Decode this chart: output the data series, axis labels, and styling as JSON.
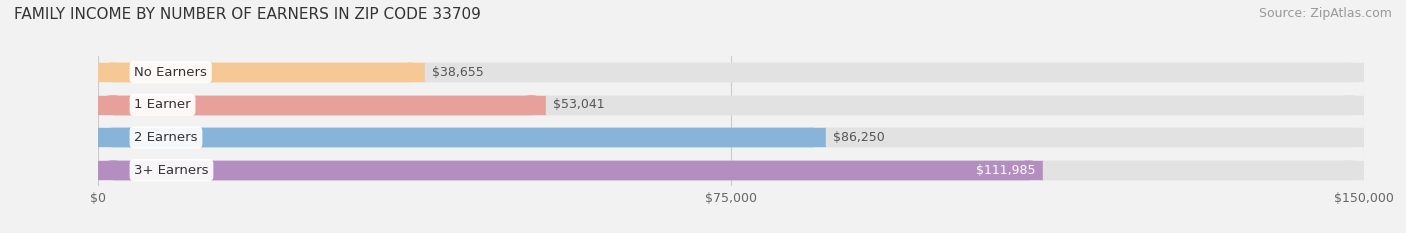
{
  "title": "FAMILY INCOME BY NUMBER OF EARNERS IN ZIP CODE 33709",
  "source": "Source: ZipAtlas.com",
  "categories": [
    "No Earners",
    "1 Earner",
    "2 Earners",
    "3+ Earners"
  ],
  "values": [
    38655,
    53041,
    86250,
    111985
  ],
  "bar_colors": [
    "#f5c896",
    "#e8a09a",
    "#89b4d9",
    "#b48ec0"
  ],
  "label_colors": [
    "#555555",
    "#555555",
    "#555555",
    "#ffffff"
  ],
  "bar_height": 0.55,
  "xlim": [
    0,
    150000
  ],
  "xticks": [
    0,
    75000,
    150000
  ],
  "xtick_labels": [
    "$0",
    "$75,000",
    "$150,000"
  ],
  "background_color": "#f2f2f2",
  "bar_bg_color": "#e2e2e2",
  "title_fontsize": 11,
  "source_fontsize": 9,
  "label_fontsize": 9.5,
  "value_fontsize": 9,
  "tick_fontsize": 9
}
